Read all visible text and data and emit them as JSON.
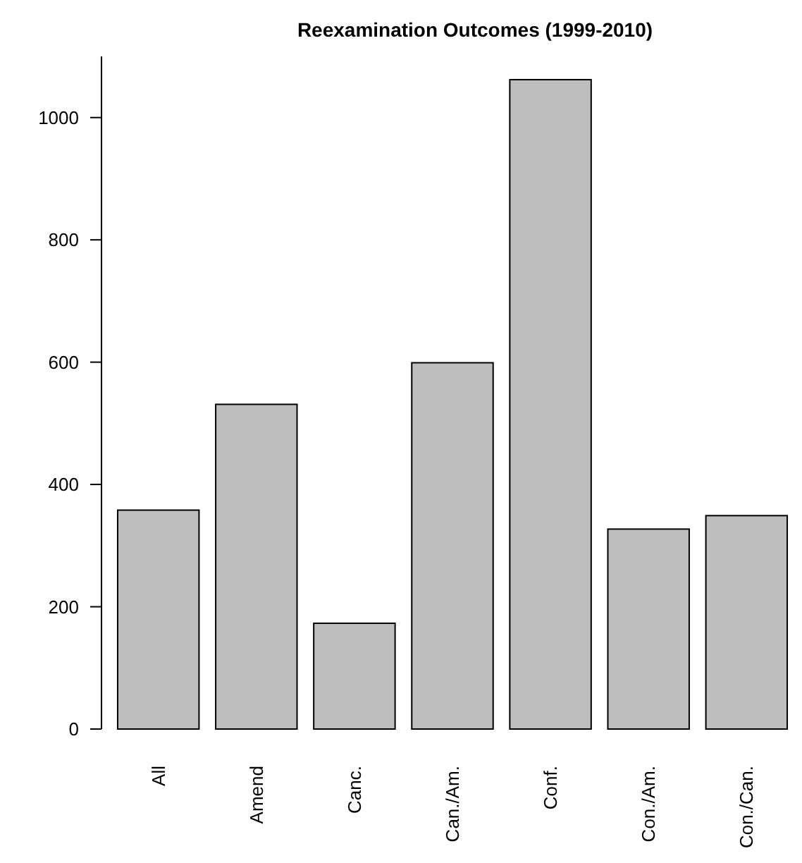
{
  "chart_data": {
    "type": "bar",
    "title": "Reexamination Outcomes (1999-2010)",
    "categories": [
      "All",
      "Amend",
      "Canc.",
      "Can./Am.",
      "Conf.",
      "Con./Am.",
      "Con./Can."
    ],
    "values": [
      358,
      531,
      173,
      599,
      1062,
      327,
      349
    ],
    "color": "#bebebe",
    "ylim": [
      0,
      1100
    ],
    "yticks": [
      0,
      200,
      400,
      600,
      800,
      1000
    ],
    "grid": false
  }
}
